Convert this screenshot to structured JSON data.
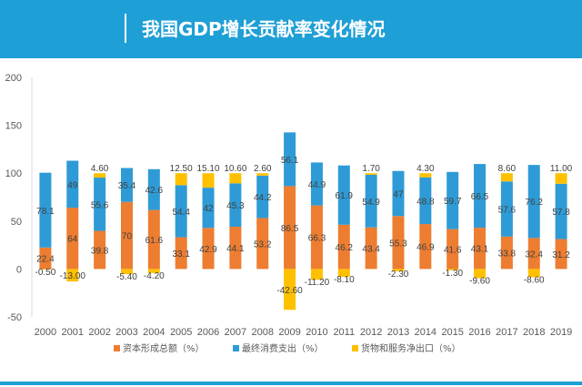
{
  "header": {
    "title": "我国GDP增长贡献率变化情况"
  },
  "colors": {
    "header": "#1e9fd6",
    "capital": "#ed7d31",
    "consumption": "#2e9bd6",
    "net_export": "#ffc000"
  },
  "chart_data": {
    "type": "bar",
    "stacked": true,
    "categories": [
      "2000",
      "2001",
      "2002",
      "2003",
      "2004",
      "2005",
      "2006",
      "2007",
      "2008",
      "2009",
      "2010",
      "2011",
      "2012",
      "2013",
      "2014",
      "2015",
      "2016",
      "2017",
      "2018",
      "2019"
    ],
    "ylim": [
      -50,
      200
    ],
    "yticks": [
      -50,
      0,
      50,
      100,
      150,
      200
    ],
    "grid": false,
    "legend_position": "bottom",
    "series": [
      {
        "name": "资本形成总额（%）",
        "color": "#ed7d31",
        "values": [
          22.4,
          64,
          39.8,
          70,
          61.6,
          33.1,
          42.9,
          44.1,
          53.2,
          86.5,
          66.3,
          46.2,
          43.4,
          55.3,
          46.9,
          41.6,
          43.1,
          33.8,
          32.4,
          31.2
        ],
        "labels": [
          "22.4",
          "64",
          "39.8",
          "70",
          "61.6",
          "33.1",
          "42.9",
          "44.1",
          "53.2",
          "86.5",
          "66.3",
          "46.2",
          "43.4",
          "55.3",
          "46.9",
          "41.6",
          "43.1",
          "33.8",
          "32.4",
          "31.2"
        ]
      },
      {
        "name": "最终消费支出（%）",
        "color": "#2e9bd6",
        "values": [
          78.1,
          49,
          55.6,
          35.4,
          42.6,
          54.4,
          42,
          45.3,
          44.2,
          56.1,
          44.9,
          61.9,
          54.9,
          47,
          48.8,
          59.7,
          66.5,
          57.6,
          76.2,
          57.8
        ],
        "labels": [
          "78.1",
          "49",
          "55.6",
          "35.4",
          "42.6",
          "54.4",
          "42",
          "45.3",
          "44.2",
          "56.1",
          "44.9",
          "61.9",
          "54.9",
          "47",
          "48.8",
          "59.7",
          "66.5",
          "57.6",
          "76.2",
          "57.8"
        ]
      },
      {
        "name": "货物和服务净出口（%）",
        "color": "#ffc000",
        "values": [
          -0.5,
          -13,
          4.6,
          -5.4,
          -4.2,
          12.5,
          15.1,
          10.6,
          2.6,
          -42.6,
          -11.2,
          -8.1,
          1.7,
          -2.3,
          4.3,
          -1.3,
          -9.6,
          8.6,
          -8.6,
          11
        ],
        "labels": [
          "-0.50",
          "-13.00",
          "4.60",
          "-5.40",
          "-4.20",
          "12.50",
          "15.10",
          "10.60",
          "2.60",
          "-42.60",
          "-11.20",
          "-8.10",
          "1.70",
          "-2.30",
          "4.30",
          "-1.30",
          "-9.60",
          "8.60",
          "-8.60",
          "11.00"
        ]
      }
    ]
  }
}
